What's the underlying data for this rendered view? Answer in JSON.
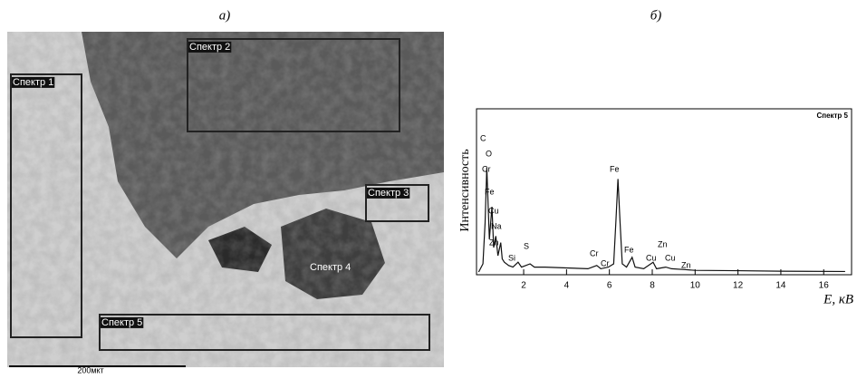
{
  "panel_a": {
    "label": "a)",
    "regions": [
      {
        "label": "Спектр 1"
      },
      {
        "label": "Спектр 2"
      },
      {
        "label": "Спектр 3"
      },
      {
        "label": "Спектр 4"
      },
      {
        "label": "Спектр 5"
      }
    ],
    "scale_bar": "200мкт"
  },
  "chart_data": {
    "type": "line",
    "panel_label": "б)",
    "title": "Спектр 5",
    "y_label": "Интенсивность",
    "x_label": "E, кВ",
    "x": [
      -0.1,
      0.1,
      0.2,
      0.28,
      0.4,
      0.52,
      0.6,
      0.7,
      0.8,
      0.93,
      1.0,
      1.1,
      1.3,
      1.5,
      1.74,
      1.9,
      2.3,
      2.5,
      3,
      4,
      5,
      5.41,
      5.6,
      5.95,
      6.2,
      6.3,
      6.4,
      6.5,
      6.6,
      6.8,
      7.06,
      7.2,
      7.6,
      8.04,
      8.2,
      8.63,
      8.9,
      9.5,
      10,
      12,
      14,
      17
    ],
    "series": [
      {
        "name": "Спектр 5",
        "color": "#111111",
        "values": [
          0,
          5,
          30,
          64,
          20,
          40,
          15,
          22,
          10,
          18,
          8,
          6,
          4,
          3,
          6,
          3,
          5,
          3,
          3,
          2.5,
          2,
          4,
          2,
          3,
          5,
          30,
          57,
          30,
          5,
          3,
          9,
          3,
          2,
          6,
          2,
          3,
          2,
          1.5,
          1,
          0.8,
          0.5,
          0.3
        ]
      }
    ],
    "annotations": [
      "C",
      "O",
      "Cr",
      "Fe",
      "Cu",
      "Na",
      "Zn",
      "Si",
      "S",
      "Cr",
      "Cr",
      "Fe",
      "Fe",
      "Cu",
      "Zn",
      "Cu",
      "Zn"
    ],
    "xlim": [
      -0.2,
      17.3
    ],
    "xticks": [
      2,
      4,
      6,
      8,
      10,
      12,
      14,
      16
    ],
    "ylim": [
      0,
      100
    ]
  }
}
